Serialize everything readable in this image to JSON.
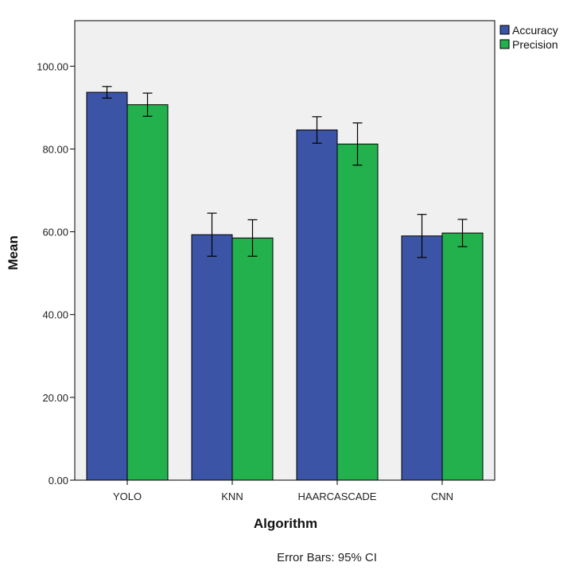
{
  "chart_data": {
    "type": "bar",
    "categories": [
      "YOLO",
      "KNN",
      "HAARCASCADE",
      "CNN"
    ],
    "series": [
      {
        "name": "Accuracy",
        "color": "#3b54a6",
        "values": [
          93.7,
          59.3,
          84.6,
          59.0
        ],
        "ci_low": [
          92.3,
          54.1,
          81.4,
          53.8
        ],
        "ci_high": [
          95.1,
          64.5,
          87.8,
          64.2
        ]
      },
      {
        "name": "Precision",
        "color": "#22b14c",
        "values": [
          90.7,
          58.5,
          81.2,
          59.7
        ],
        "ci_low": [
          87.9,
          54.1,
          76.1,
          56.4
        ],
        "ci_high": [
          93.5,
          62.9,
          86.3,
          63.0
        ]
      }
    ],
    "xlabel": "Algorithm",
    "ylabel": "Mean",
    "ylim": [
      0,
      111
    ],
    "yticks": [
      0,
      20,
      40,
      60,
      80,
      100
    ],
    "ytick_labels": [
      "0.00",
      "20.00",
      "40.00",
      "60.00",
      "80.00",
      "100.00"
    ],
    "legend_position": "top-right",
    "grid": false,
    "plot_background": "#f0f0f0",
    "footnote": "Error Bars: 95% CI"
  }
}
